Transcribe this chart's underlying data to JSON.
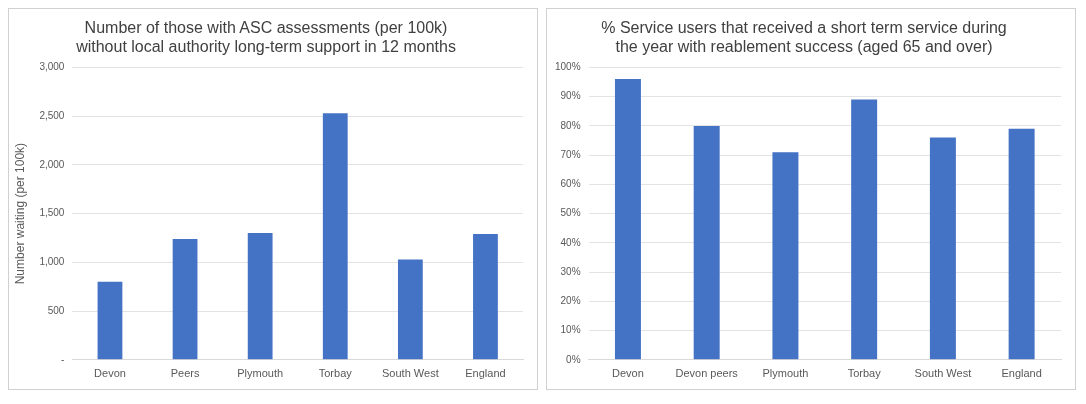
{
  "chart_data": [
    {
      "type": "bar",
      "title": [
        "Number of those with ASC assessments (per 100k)",
        "without local authority long-term support in 12 months"
      ],
      "ylabel": "Number waiting (per 100k)",
      "categories": [
        "Devon",
        "Peers",
        "Plymouth",
        "Torbay",
        "South West",
        "England"
      ],
      "values": [
        800,
        1240,
        1300,
        2530,
        1030,
        1290
      ],
      "color": "#4472c4",
      "ylim": [
        0,
        3000
      ],
      "yticks": [
        {
          "value": 0,
          "label": "-"
        },
        {
          "value": 500,
          "label": "500"
        },
        {
          "value": 1000,
          "label": "1,000"
        },
        {
          "value": 1500,
          "label": "1,500"
        },
        {
          "value": 2000,
          "label": "2,000"
        },
        {
          "value": 2500,
          "label": "2,500"
        },
        {
          "value": 3000,
          "label": "3,000"
        }
      ],
      "grid": "y",
      "legend": false
    },
    {
      "type": "bar",
      "title": [
        "% Service users that received a short term service during",
        "the year with reablement success (aged 65 and over)"
      ],
      "categories": [
        "Devon",
        "Devon peers",
        "Plymouth",
        "Torbay",
        "South West",
        "England"
      ],
      "values": [
        96,
        80,
        71,
        89,
        76,
        79
      ],
      "color": "#4472c4",
      "ylim": [
        0,
        100
      ],
      "yticks": [
        {
          "value": 0,
          "label": "0%"
        },
        {
          "value": 10,
          "label": "10%"
        },
        {
          "value": 20,
          "label": "20%"
        },
        {
          "value": 30,
          "label": "30%"
        },
        {
          "value": 40,
          "label": "40%"
        },
        {
          "value": 50,
          "label": "50%"
        },
        {
          "value": 60,
          "label": "60%"
        },
        {
          "value": 70,
          "label": "70%"
        },
        {
          "value": 80,
          "label": "80%"
        },
        {
          "value": 90,
          "label": "90%"
        },
        {
          "value": 100,
          "label": "100%"
        }
      ],
      "grid": "y",
      "legend": false
    }
  ]
}
